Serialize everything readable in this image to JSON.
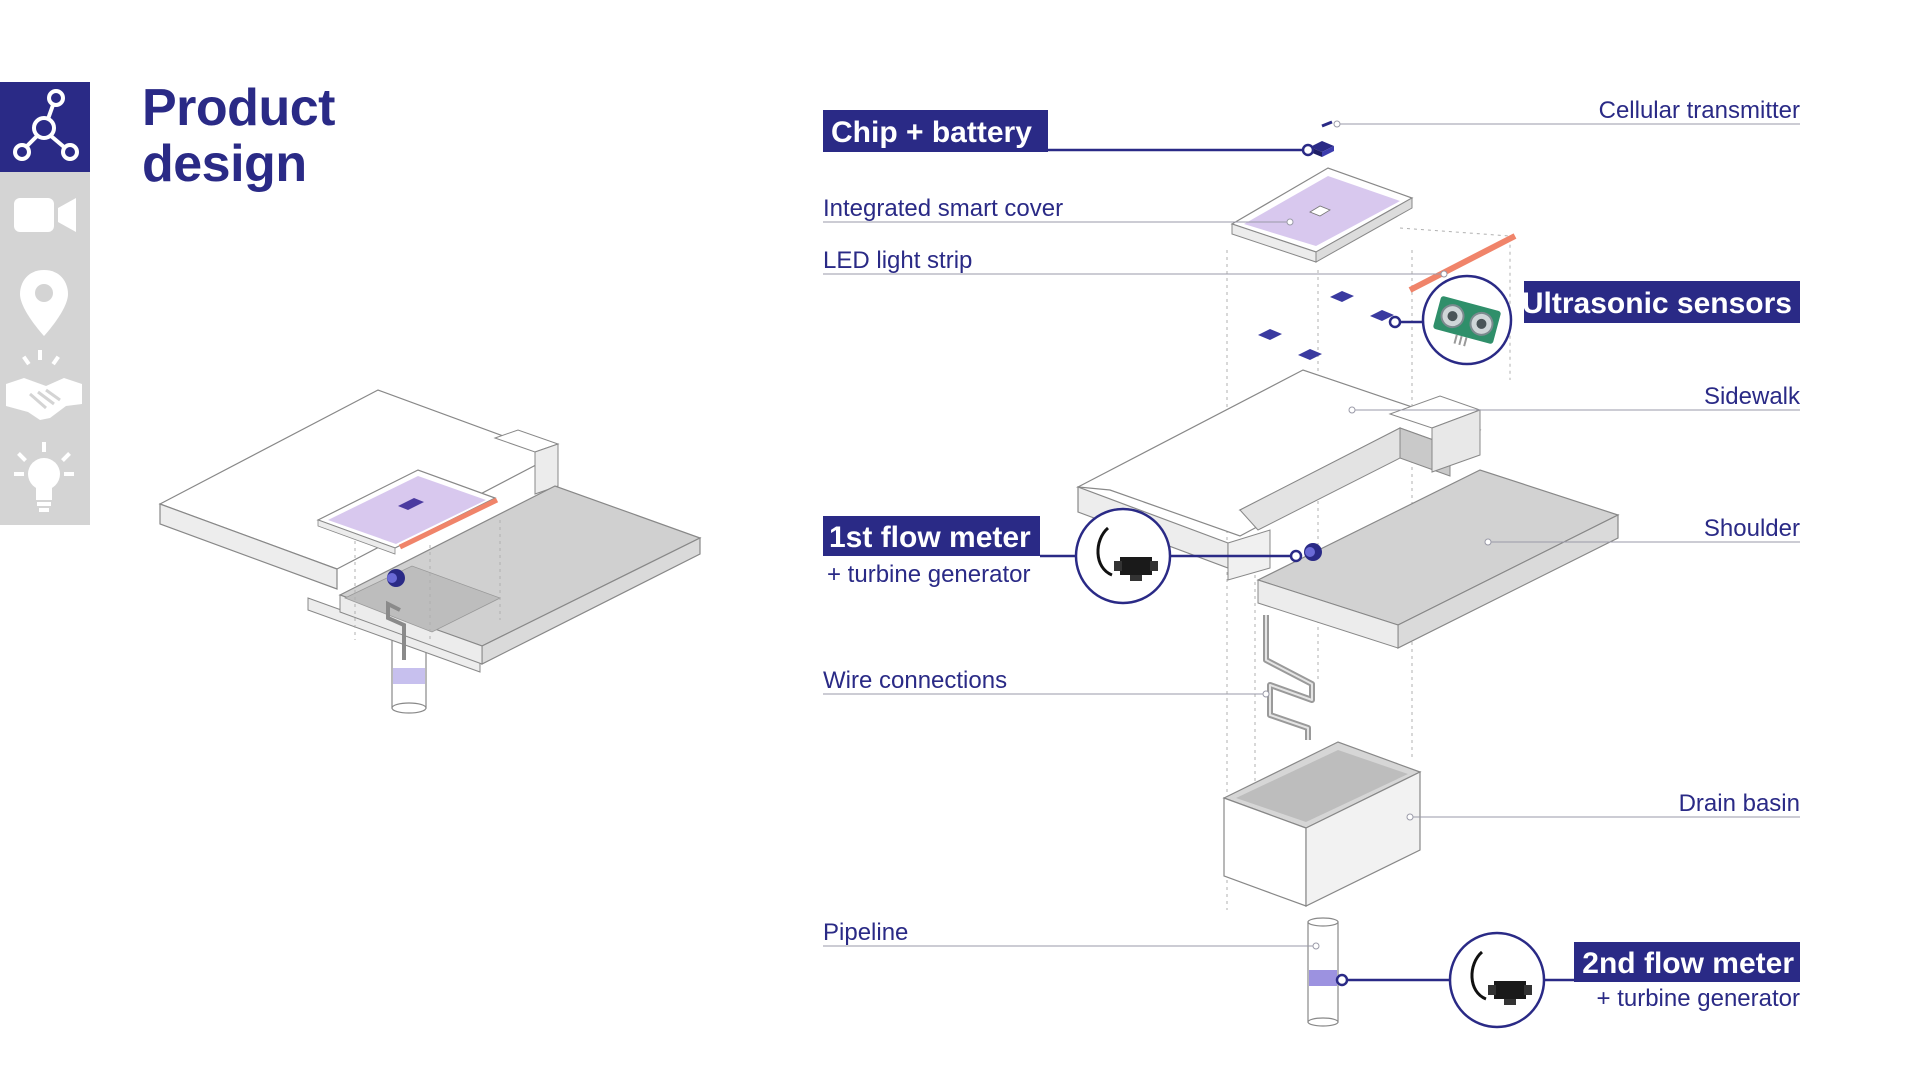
{
  "page": {
    "title_line1": "Product",
    "title_line2": "design"
  },
  "sidebar": {
    "items": [
      {
        "icon": "network-icon",
        "active": true
      },
      {
        "icon": "video-camera-icon",
        "active": false
      },
      {
        "icon": "map-pin-icon",
        "active": false
      },
      {
        "icon": "handshake-icon",
        "active": false
      },
      {
        "icon": "lightbulb-icon",
        "active": false
      }
    ]
  },
  "labels": {
    "cellular_transmitter": "Cellular transmitter",
    "chip_battery": "Chip + battery",
    "integrated_smart_cover": "Integrated smart cover",
    "led_light_strip": "LED light strip",
    "ultrasonic_sensors": "Ultrasonic sensors",
    "sidewalk": "Sidewalk",
    "shoulder": "Shoulder",
    "flow_meter_1": "1st flow meter",
    "flow_meter_1_sub": "+ turbine generator",
    "wire_connections": "Wire connections",
    "drain_basin": "Drain basin",
    "pipeline": "Pipeline",
    "flow_meter_2": "2nd flow meter",
    "flow_meter_2_sub": "+ turbine generator"
  },
  "colors": {
    "navy": "#2a2a86",
    "sidebar_gray": "#d4d4d4",
    "cover_purple": "#d8c8ee",
    "led_orange": "#f0846a",
    "sensor_green": "#2f8f6a",
    "water_blue": "#9c92e0"
  }
}
